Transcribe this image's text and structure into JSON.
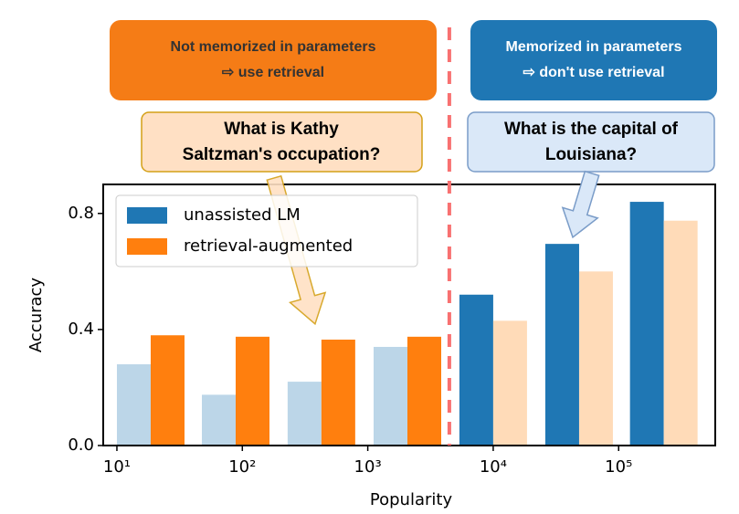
{
  "chart_data": {
    "type": "bar",
    "xlabel": "Popularity",
    "ylabel": "Accuracy",
    "x": [
      18.6,
      88.5,
      427,
      2070,
      10000,
      48400,
      229000
    ],
    "xscale": "log",
    "xlim": [
      7.78,
      589000
    ],
    "xticks": [
      {
        "value": 10,
        "label": "10¹"
      },
      {
        "value": 100,
        "label": "10²"
      },
      {
        "value": 1000,
        "label": "10³"
      },
      {
        "value": 10000,
        "label": "10⁴"
      },
      {
        "value": 100000,
        "label": "10⁵"
      }
    ],
    "ylim": [
      0,
      0.9
    ],
    "yticks": [
      {
        "value": 0,
        "label": "0.0"
      },
      0.4,
      0.8
    ],
    "legend": "upper left",
    "divider_x": 4470,
    "divider_color": "#f87171",
    "series": [
      {
        "name": "unassisted LM",
        "color": "#1f77b4",
        "colors": [
          "#bcd6e8",
          "#bcd6e8",
          "#bcd6e8",
          "#bcd6e8",
          "#1f77b4",
          "#1f77b4",
          "#1f77b4"
        ],
        "values": [
          0.28,
          0.175,
          0.22,
          0.34,
          0.52,
          0.695,
          0.84
        ]
      },
      {
        "name": "retrieval-augmented",
        "color": "#ff7f0e",
        "colors": [
          "#ff7f0e",
          "#ff7f0e",
          "#ff7f0e",
          "#ff7f0e",
          "#ffdbb8",
          "#ffdbb8",
          "#ffdbb8"
        ],
        "values": [
          0.38,
          0.375,
          0.365,
          0.375,
          0.43,
          0.6,
          0.775
        ]
      }
    ],
    "annotations": [
      {
        "lines": [
          "Not memorized in parameters",
          "⇨ use retrieval"
        ]
      },
      {
        "lines": [
          "Memorized in parameters",
          "⇨ don't use retrieval"
        ]
      },
      {
        "lines": [
          "What is Kathy",
          "Saltzman's occupation?"
        ]
      },
      {
        "lines": [
          "What is the capital of",
          "Louisiana?"
        ]
      }
    ]
  }
}
